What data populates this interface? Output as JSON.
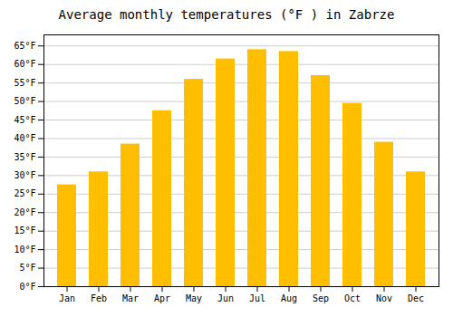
{
  "chart_data": {
    "type": "bar",
    "title": "Average monthly temperatures (°F ) in Zabrze",
    "categories": [
      "Jan",
      "Feb",
      "Mar",
      "Apr",
      "May",
      "Jun",
      "Jul",
      "Aug",
      "Sep",
      "Oct",
      "Nov",
      "Dec"
    ],
    "values": [
      27.5,
      31.0,
      38.5,
      47.5,
      56.0,
      61.5,
      64.0,
      63.5,
      57.0,
      49.5,
      39.0,
      31.0
    ],
    "color": "#FFBF00",
    "ylim": [
      0,
      68
    ],
    "yticks": [
      {
        "value": 0,
        "label": "0°F"
      },
      {
        "value": 5,
        "label": "5°F"
      },
      {
        "value": 10,
        "label": "10°F"
      },
      {
        "value": 15,
        "label": "15°F"
      },
      {
        "value": 20,
        "label": "20°F"
      },
      {
        "value": 25,
        "label": "25°F"
      },
      {
        "value": 30,
        "label": "30°F"
      },
      {
        "value": 35,
        "label": "35°F"
      },
      {
        "value": 40,
        "label": "40°F"
      },
      {
        "value": 45,
        "label": "45°F"
      },
      {
        "value": 50,
        "label": "50°F"
      },
      {
        "value": 55,
        "label": "55°F"
      },
      {
        "value": 60,
        "label": "60°F"
      },
      {
        "value": 65,
        "label": "65°F"
      }
    ],
    "grid": true
  }
}
